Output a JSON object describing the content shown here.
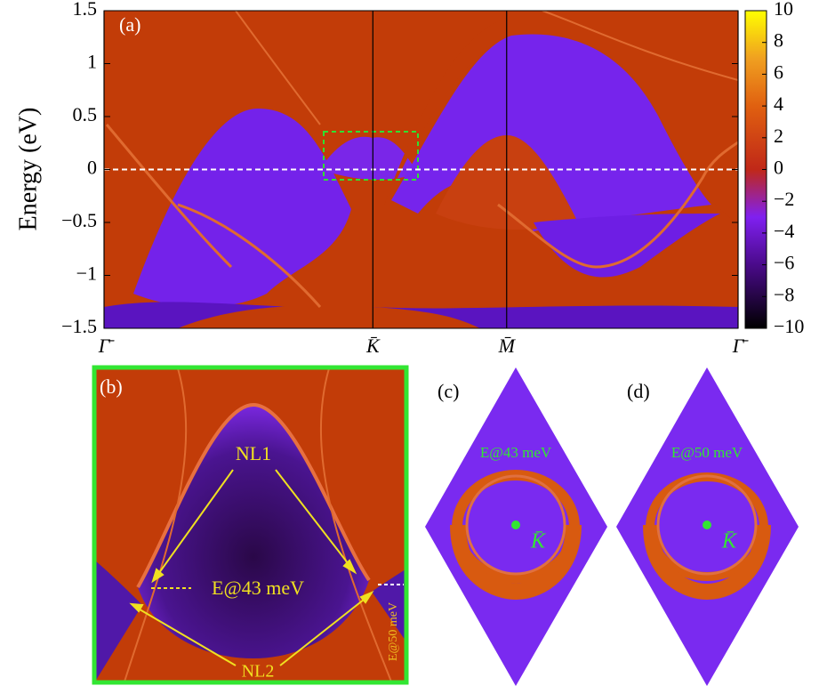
{
  "chart_data": {
    "type": "heatmap",
    "panel_a": {
      "label": "(a)",
      "ylabel": "Energy (eV)",
      "ylim": [
        -1.5,
        1.5
      ],
      "yticks": [
        {
          "value": -1.5,
          "label": "−1.5"
        },
        {
          "value": -1,
          "label": "−1"
        },
        {
          "value": -0.5,
          "label": "−0.5"
        },
        0,
        0.5,
        1,
        1.5
      ],
      "xlim": [
        0,
        1
      ],
      "xticks": [
        {
          "value": 0,
          "label": "Γ̄"
        },
        {
          "value": 0.424,
          "label": "K̄"
        },
        {
          "value": 0.635,
          "label": "M̄"
        },
        {
          "value": 1,
          "label": "Γ̄"
        }
      ],
      "clim": [
        -10,
        10
      ],
      "cticks": [
        {
          "value": -10,
          "label": "−10"
        },
        {
          "value": -8,
          "label": "−8"
        },
        {
          "value": -6,
          "label": "−6"
        },
        {
          "value": -4,
          "label": "−4"
        },
        {
          "value": -2,
          "label": "−2"
        },
        0,
        2,
        4,
        6,
        8,
        10
      ]
    },
    "panel_b": {
      "label": "(b)",
      "annotations": [
        "NL1",
        "E@43 meV",
        "NL2",
        "E@50 meV"
      ]
    },
    "panel_c": {
      "label": "(c)",
      "energy": "E@43 meV",
      "point": "K̄"
    },
    "panel_d": {
      "label": "(d)",
      "energy": "E@50 meV",
      "point": "K̄"
    }
  }
}
